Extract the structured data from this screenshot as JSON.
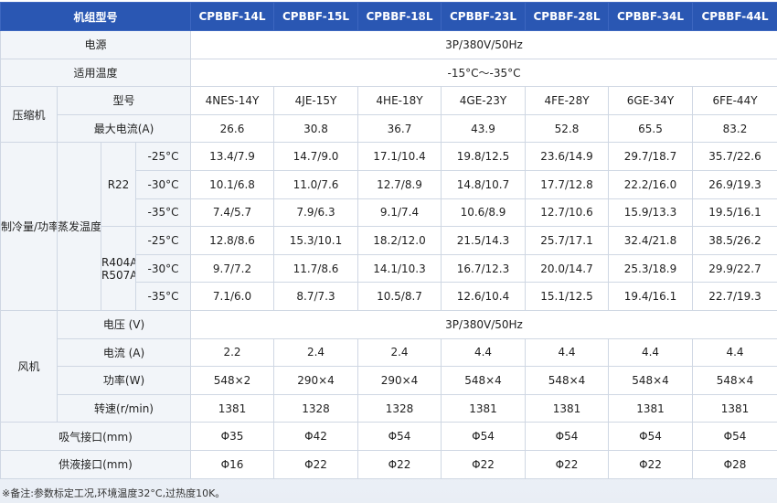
{
  "header": {
    "model_label": "机组型号",
    "models": [
      "CPBBF-14L",
      "CPBBF-15L",
      "CPBBF-18L",
      "CPBBF-23L",
      "CPBBF-28L",
      "CPBBF-34L",
      "CPBBF-44L"
    ]
  },
  "power_supply": {
    "label": "电源",
    "value": "3P/380V/50Hz"
  },
  "temp_range": {
    "label": "适用温度",
    "value": "-15°C～-35°C"
  },
  "compressor": {
    "group": "压缩机",
    "model_label": "型号",
    "models": [
      "4NES-14Y",
      "4JE-15Y",
      "4HE-18Y",
      "4GE-23Y",
      "4FE-28Y",
      "6GE-34Y",
      "6FE-44Y"
    ],
    "current_label": "最大电流(A)",
    "currents": [
      "26.6",
      "30.8",
      "36.7",
      "43.9",
      "52.8",
      "65.5",
      "83.2"
    ]
  },
  "cooling": {
    "group": "制冷量/功率(KW)",
    "evap_label": "蒸发温度",
    "r22": {
      "label": "R22",
      "rows": [
        {
          "temp": "-25°C",
          "values": [
            "13.4/7.9",
            "14.7/9.0",
            "17.1/10.4",
            "19.8/12.5",
            "23.6/14.9",
            "29.7/18.7",
            "35.7/22.6"
          ]
        },
        {
          "temp": "-30°C",
          "values": [
            "10.1/6.8",
            "11.0/7.6",
            "12.7/8.9",
            "14.8/10.7",
            "17.7/12.8",
            "22.2/16.0",
            "26.9/19.3"
          ]
        },
        {
          "temp": "-35°C",
          "values": [
            "7.4/5.7",
            "7.9/6.3",
            "9.1/7.4",
            "10.6/8.9",
            "12.7/10.6",
            "15.9/13.3",
            "19.5/16.1"
          ]
        }
      ]
    },
    "r404": {
      "label_line1": "R404A",
      "label_line2": "R507A",
      "rows": [
        {
          "temp": "-25°C",
          "values": [
            "12.8/8.6",
            "15.3/10.1",
            "18.2/12.0",
            "21.5/14.3",
            "25.7/17.1",
            "32.4/21.8",
            "38.5/26.2"
          ]
        },
        {
          "temp": "-30°C",
          "values": [
            "9.7/7.2",
            "11.7/8.6",
            "14.1/10.3",
            "16.7/12.3",
            "20.0/14.7",
            "25.3/18.9",
            "29.9/22.7"
          ]
        },
        {
          "temp": "-35°C",
          "values": [
            "7.1/6.0",
            "8.7/7.3",
            "10.5/8.7",
            "12.6/10.4",
            "15.1/12.5",
            "19.4/16.1",
            "22.7/19.3"
          ]
        }
      ]
    }
  },
  "fan": {
    "group": "风机",
    "voltage_label": "电压 (V)",
    "voltage": "3P/380V/50Hz",
    "current_label": "电流 (A)",
    "currents": [
      "2.2",
      "2.4",
      "2.4",
      "4.4",
      "4.4",
      "4.4",
      "4.4"
    ],
    "power_label": "功率(W)",
    "powers": [
      "548×2",
      "290×4",
      "290×4",
      "548×4",
      "548×4",
      "548×4",
      "548×4"
    ],
    "speed_label": "转速(r/min)",
    "speeds": [
      "1381",
      "1328",
      "1328",
      "1381",
      "1381",
      "1381",
      "1381"
    ]
  },
  "suction": {
    "label": "吸气接口(mm)",
    "values": [
      "Φ35",
      "Φ42",
      "Φ54",
      "Φ54",
      "Φ54",
      "Φ54",
      "Φ54"
    ]
  },
  "liquid": {
    "label": "供液接口(mm)",
    "values": [
      "Φ16",
      "Φ22",
      "Φ22",
      "Φ22",
      "Φ22",
      "Φ22",
      "Φ28"
    ]
  },
  "footnote": "※备注:参数标定工况,环境温度32°C,过热度10K。"
}
